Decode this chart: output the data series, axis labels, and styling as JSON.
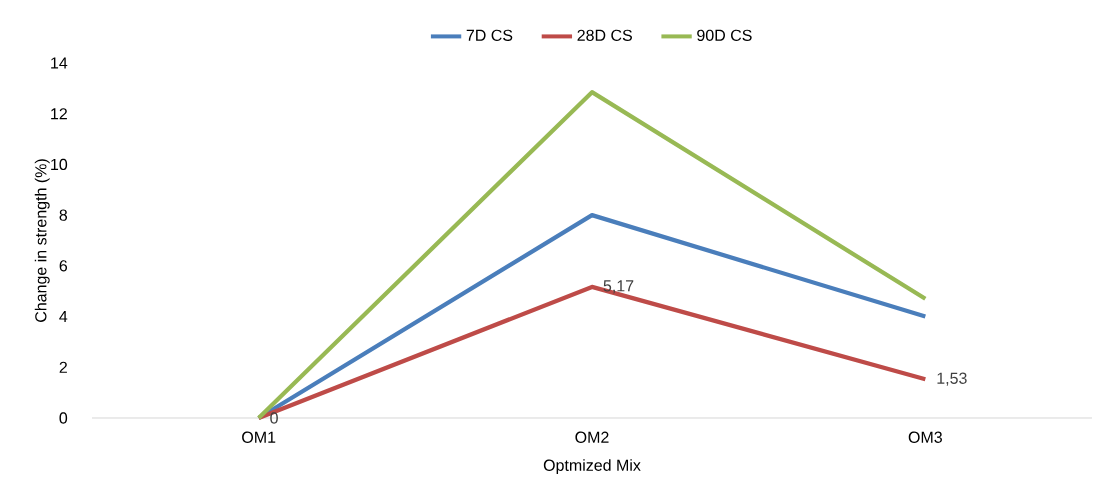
{
  "chart_data": {
    "type": "line",
    "xlabel": "Optmized Mix",
    "ylabel": "Change in strength (%)",
    "categories": [
      "OM1",
      "OM2",
      "OM3"
    ],
    "series": [
      {
        "name": "7D CS",
        "color": "#4a7ebb",
        "values": [
          0,
          8.0,
          4.0
        ]
      },
      {
        "name": "28D CS",
        "color": "#be4b48",
        "values": [
          0,
          5.17,
          1.53
        ],
        "value_labels": [
          "0",
          "5,17",
          "1,53"
        ]
      },
      {
        "name": "90D CS",
        "color": "#98b954",
        "values": [
          0,
          12.85,
          4.7
        ]
      }
    ],
    "ylim": [
      0,
      14
    ],
    "yticks": [
      0,
      2,
      4,
      6,
      8,
      10,
      12,
      14
    ],
    "grid": false,
    "legend": "top",
    "marker": "none",
    "line_style": "solid"
  }
}
